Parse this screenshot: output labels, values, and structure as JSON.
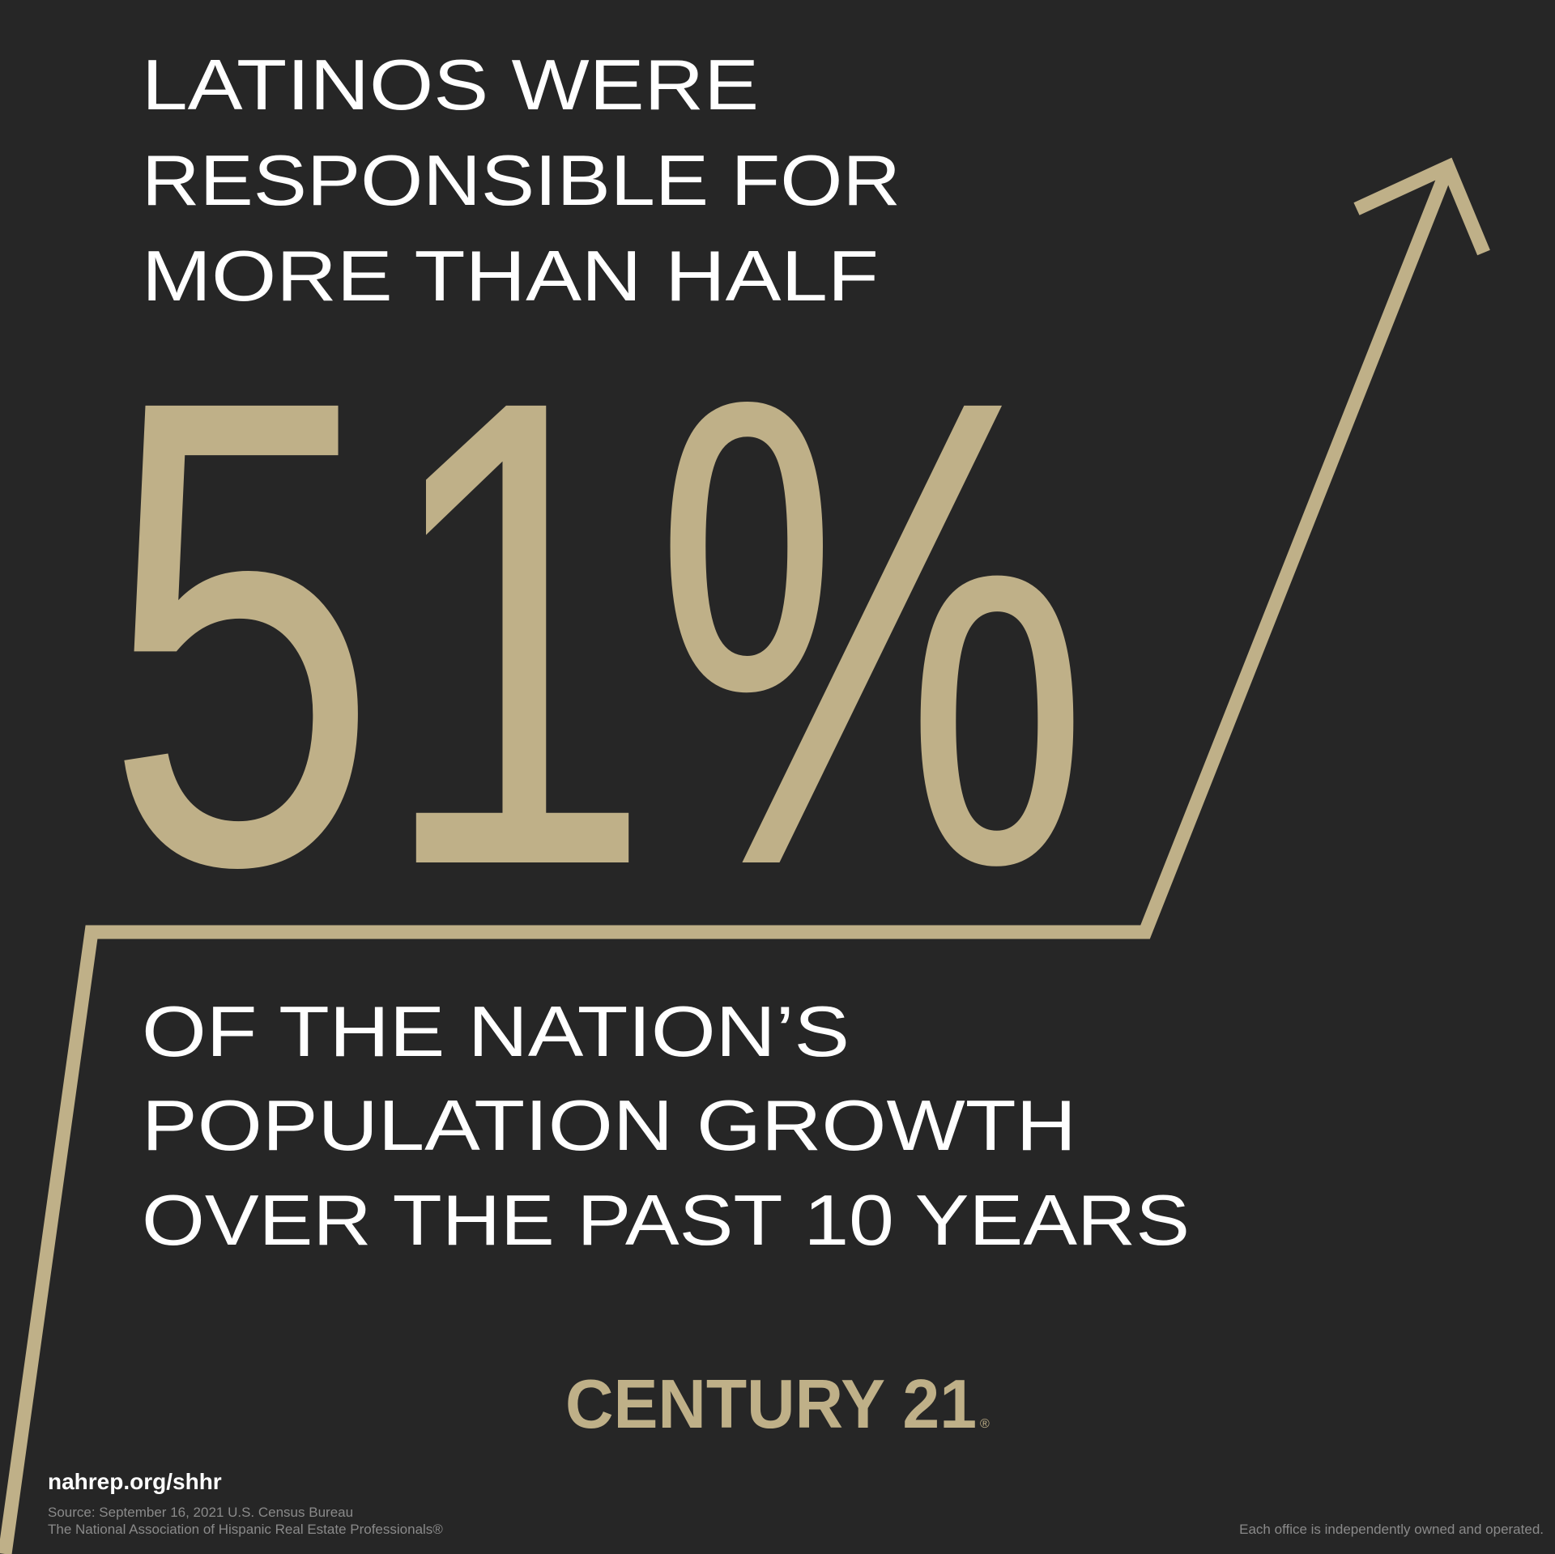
{
  "headline": {
    "lines": [
      "LATINOS WERE",
      "RESPONSIBLE FOR",
      "MORE THAN HALF"
    ]
  },
  "statistic": "51%",
  "subline": {
    "lines": [
      "OF THE NATION’S",
      "POPULATION GROWTH",
      "OVER THE PAST 10 YEARS"
    ]
  },
  "brand": {
    "name": "CENTURY 21",
    "mark": "®"
  },
  "footer": {
    "url": "nahrep.org/shhr",
    "source": [
      "Source: September 16, 2021 U.S. Census Bureau",
      "The National Association of Hispanic Real Estate Professionals®"
    ],
    "disclaimer": "Each office is independently owned and operated."
  }
}
